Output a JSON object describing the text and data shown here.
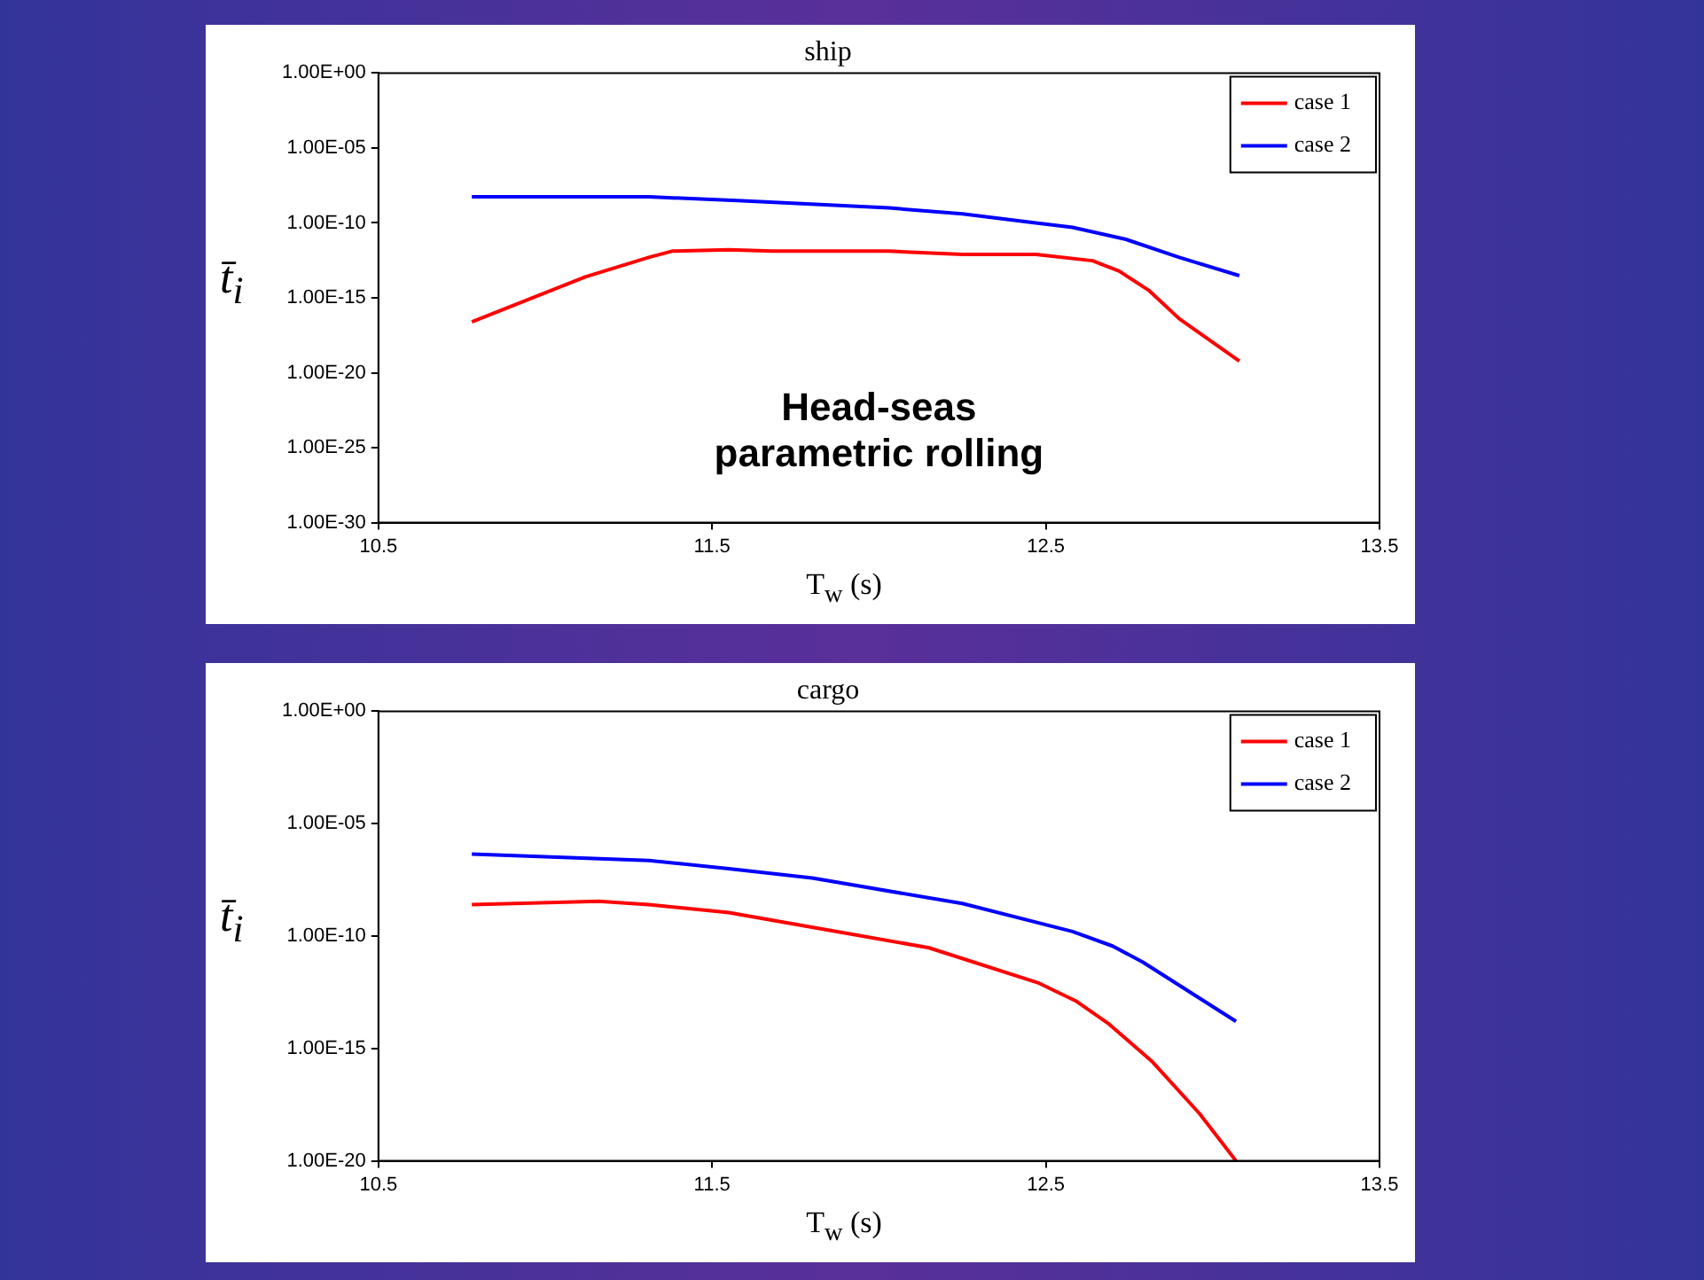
{
  "chart_data": [
    {
      "type": "line",
      "title": "ship",
      "xlabel": "T$_{w}$ (s)",
      "ylabel": "t̄$_{i}$",
      "log": "y",
      "grid": false,
      "legend": "top right",
      "marker": "none",
      "line_style": "solid",
      "xlim": [
        10.5,
        13.5
      ],
      "xticks": [
        10.5,
        11.5,
        12.5,
        13.5
      ],
      "ylim": [
        1e-30,
        1
      ],
      "yticks": [
        {
          "value": 1,
          "label": "1.00E+00"
        },
        {
          "value": 1e-05,
          "label": "1.00E-05"
        },
        {
          "value": 1e-10,
          "label": "1.00E-10"
        },
        {
          "value": 1e-15,
          "label": "1.00E-15"
        },
        {
          "value": 1e-20,
          "label": "1.00E-20"
        },
        {
          "value": 1e-25,
          "label": "1.00E-25"
        },
        {
          "value": 1e-30,
          "label": "1.00E-30"
        }
      ],
      "annotations": [
        "Head-seas parametric rolling"
      ],
      "series": [
        {
          "name": "case 1",
          "color": "#ff0000",
          "x": [
            10.78,
            11.12,
            11.31,
            11.38,
            11.55,
            11.68,
            12.03,
            12.25,
            12.47,
            12.64,
            12.72,
            12.81,
            12.9,
            13.08
          ],
          "values": [
            2.5e-17,
            2.5e-14,
            5e-13,
            1.3e-12,
            1.6e-12,
            1.3e-12,
            1.3e-12,
            8e-13,
            8e-13,
            3e-13,
            6e-14,
            3e-15,
            4e-17,
            6e-20
          ]
        },
        {
          "name": "case 2",
          "color": "#0000ff",
          "x": [
            10.78,
            11.31,
            11.59,
            12.03,
            12.25,
            12.47,
            12.58,
            12.74,
            12.9,
            13.08
          ],
          "values": [
            5.5e-09,
            5.5e-09,
            3e-09,
            1e-09,
            4e-10,
            1e-10,
            5e-11,
            8e-12,
            5e-13,
            3e-14
          ]
        }
      ]
    },
    {
      "type": "line",
      "title": "cargo",
      "xlabel": "T$_{w}$ (s)",
      "ylabel": "t̄$_{i}$",
      "log": "y",
      "grid": false,
      "legend": "top right",
      "marker": "none",
      "line_style": "solid",
      "xlim": [
        10.5,
        13.5
      ],
      "xticks": [
        10.5,
        11.5,
        12.5,
        13.5
      ],
      "ylim": [
        1e-20,
        1
      ],
      "yticks": [
        {
          "value": 1,
          "label": "1.00E+00"
        },
        {
          "value": 1e-05,
          "label": "1.00E-05"
        },
        {
          "value": 1e-10,
          "label": "1.00E-10"
        },
        {
          "value": 1e-15,
          "label": "1.00E-15"
        },
        {
          "value": 1e-20,
          "label": "1.00E-20"
        }
      ],
      "series": [
        {
          "name": "case 1",
          "color": "#ff0000",
          "x": [
            10.78,
            11.16,
            11.31,
            11.55,
            11.78,
            12.15,
            12.48,
            12.59,
            12.69,
            12.82,
            12.96,
            13.07
          ],
          "values": [
            2.5e-09,
            3.5e-09,
            2.5e-09,
            1.1e-09,
            2.8e-10,
            3e-11,
            8e-13,
            1.3e-13,
            1.2e-14,
            2.5e-16,
            1.3e-18,
            1e-20
          ]
        },
        {
          "name": "case 2",
          "color": "#0000ff",
          "x": [
            10.78,
            11.31,
            11.55,
            11.8,
            12.25,
            12.58,
            12.7,
            12.79,
            13.07
          ],
          "values": [
            4.4e-07,
            2.3e-07,
            1e-07,
            3.8e-08,
            2.8e-09,
            1.6e-10,
            3.6e-11,
            7e-12,
            1.6e-14
          ]
        }
      ]
    }
  ]
}
